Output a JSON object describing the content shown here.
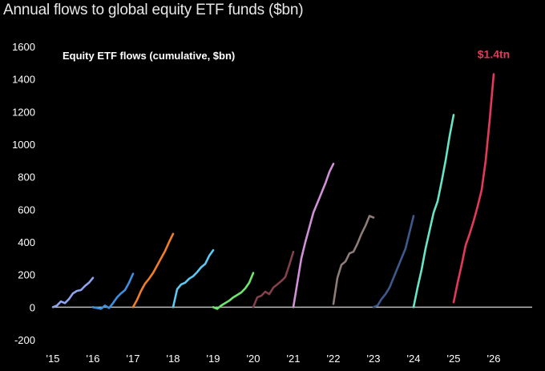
{
  "header": {
    "title": "Annual flows to global equity ETF funds ($bn)"
  },
  "chart_data": {
    "type": "line",
    "title": "Equity ETF flows (cumulative, $bn)",
    "xlabel": "",
    "ylabel": "",
    "ylim": [
      -200,
      1600
    ],
    "xlim": [
      2015,
      2027
    ],
    "grid": false,
    "y_ticks": [
      "-200",
      "0",
      "200",
      "400",
      "600",
      "800",
      "1000",
      "1200",
      "1400",
      "1600"
    ],
    "x_ticks": [
      "'15",
      "'16",
      "'17",
      "'18",
      "'19",
      "'20",
      "'21",
      "'22",
      "'23",
      "'24",
      "'25",
      "'26"
    ],
    "end_label": "$1.4tn",
    "series": [
      {
        "year": "2015",
        "color": "#8ea4ee",
        "x": [
          2015.0,
          2015.1,
          2015.2,
          2015.3,
          2015.4,
          2015.5,
          2015.6,
          2015.7,
          2015.8,
          2015.9,
          2016.0
        ],
        "values": [
          0,
          10,
          35,
          25,
          50,
          85,
          100,
          105,
          130,
          150,
          180
        ]
      },
      {
        "year": "2016",
        "color": "#3e8ee0",
        "x": [
          2016.0,
          2016.1,
          2016.2,
          2016.3,
          2016.4,
          2016.5,
          2016.6,
          2016.7,
          2016.8,
          2016.9,
          2017.0
        ],
        "values": [
          0,
          -5,
          -10,
          10,
          -5,
          25,
          60,
          85,
          105,
          150,
          205
        ]
      },
      {
        "year": "2017",
        "color": "#f07e26",
        "x": [
          2017.0,
          2017.1,
          2017.2,
          2017.3,
          2017.4,
          2017.5,
          2017.6,
          2017.7,
          2017.8,
          2017.9,
          2018.0
        ],
        "values": [
          0,
          45,
          100,
          145,
          175,
          210,
          255,
          300,
          345,
          400,
          450
        ]
      },
      {
        "year": "2018",
        "color": "#5cc9f0",
        "x": [
          2018.0,
          2018.1,
          2018.2,
          2018.3,
          2018.4,
          2018.5,
          2018.6,
          2018.7,
          2018.8,
          2018.9,
          2019.0
        ],
        "values": [
          0,
          110,
          140,
          150,
          175,
          190,
          215,
          245,
          265,
          315,
          350
        ]
      },
      {
        "year": "2019",
        "color": "#6ee66e",
        "x": [
          2019.0,
          2019.1,
          2019.2,
          2019.3,
          2019.4,
          2019.5,
          2019.6,
          2019.7,
          2019.8,
          2019.9,
          2020.0
        ],
        "values": [
          0,
          -10,
          10,
          25,
          40,
          60,
          75,
          90,
          115,
          150,
          210
        ]
      },
      {
        "year": "2020",
        "color": "#82404a",
        "x": [
          2020.0,
          2020.1,
          2020.2,
          2020.3,
          2020.4,
          2020.5,
          2020.6,
          2020.7,
          2020.8,
          2020.9,
          2021.0
        ],
        "values": [
          0,
          60,
          70,
          95,
          80,
          120,
          140,
          160,
          185,
          260,
          340
        ]
      },
      {
        "year": "2021",
        "color": "#d190d8",
        "x": [
          2021.0,
          2021.1,
          2021.2,
          2021.3,
          2021.4,
          2021.5,
          2021.6,
          2021.7,
          2021.8,
          2021.9,
          2022.0
        ],
        "values": [
          0,
          150,
          300,
          400,
          490,
          580,
          640,
          700,
          760,
          830,
          880
        ]
      },
      {
        "year": "2022",
        "color": "#8d7c77",
        "x": [
          2022.0,
          2022.1,
          2022.2,
          2022.3,
          2022.4,
          2022.5,
          2022.6,
          2022.7,
          2022.8,
          2022.9,
          2023.0
        ],
        "values": [
          20,
          180,
          260,
          280,
          330,
          340,
          390,
          450,
          500,
          560,
          550
        ]
      },
      {
        "year": "2023",
        "color": "#3c5a8e",
        "x": [
          2023.0,
          2023.1,
          2023.2,
          2023.3,
          2023.4,
          2023.5,
          2023.6,
          2023.7,
          2023.8,
          2023.9,
          2024.0
        ],
        "values": [
          0,
          10,
          50,
          80,
          120,
          180,
          240,
          300,
          360,
          460,
          560
        ]
      },
      {
        "year": "2024",
        "color": "#67e5c6",
        "x": [
          2024.0,
          2024.1,
          2024.2,
          2024.3,
          2024.4,
          2024.5,
          2024.6,
          2024.7,
          2024.8,
          2024.9,
          2025.0
        ],
        "values": [
          0,
          120,
          230,
          360,
          470,
          580,
          650,
          770,
          900,
          1050,
          1180
        ]
      },
      {
        "year": "2025",
        "color": "#e5395a",
        "x": [
          2025.0,
          2025.1,
          2025.2,
          2025.3,
          2025.4,
          2025.5,
          2025.6,
          2025.7,
          2025.8,
          2025.9,
          2026.0
        ],
        "values": [
          30,
          150,
          260,
          380,
          450,
          530,
          620,
          720,
          900,
          1150,
          1430
        ]
      }
    ]
  },
  "colors": {
    "background": "#000000",
    "axis": "#bbbbbb",
    "end_label": "#e5395a"
  }
}
